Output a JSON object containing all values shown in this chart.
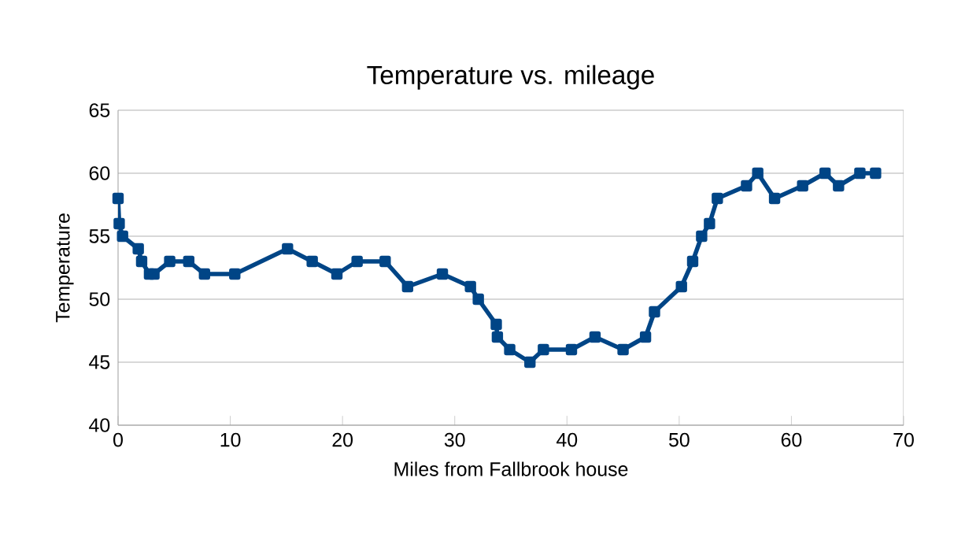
{
  "chart_data": {
    "type": "line",
    "title": "Temperature vs. mileage",
    "xlabel": "Miles from Fallbrook house",
    "ylabel": "Temperature",
    "x": [
      0,
      0.1,
      0.4,
      1.8,
      2.1,
      2.8,
      3.2,
      4.6,
      6.3,
      7.7,
      10.4,
      15.1,
      17.3,
      19.5,
      21.3,
      23.8,
      25.8,
      28.9,
      31.4,
      32.1,
      33.7,
      33.8,
      34.9,
      36.7,
      37.9,
      40.4,
      42.5,
      45.0,
      47.0,
      47.8,
      50.2,
      51.2,
      52.0,
      52.7,
      53.4,
      56.0,
      57.0,
      58.5,
      61.0,
      63.0,
      64.2,
      66.1,
      67.5
    ],
    "values": [
      58,
      56,
      55,
      54,
      53,
      52,
      52,
      53,
      53,
      52,
      52,
      54,
      53,
      52,
      53,
      53,
      51,
      52,
      51,
      50,
      48,
      47,
      46,
      45,
      46,
      46,
      47,
      46,
      47,
      49,
      51,
      53,
      55,
      56,
      58,
      59,
      60,
      58,
      59,
      60,
      59,
      60,
      60
    ],
    "color": "#004586",
    "marker": "square",
    "line_style": "solid",
    "grid": "y",
    "xlim": [
      0,
      70
    ],
    "xticks": [
      0,
      10,
      20,
      30,
      40,
      50,
      60,
      70
    ],
    "ylim": [
      40,
      65
    ],
    "yticks": [
      40,
      45,
      50,
      55,
      60,
      65
    ]
  }
}
